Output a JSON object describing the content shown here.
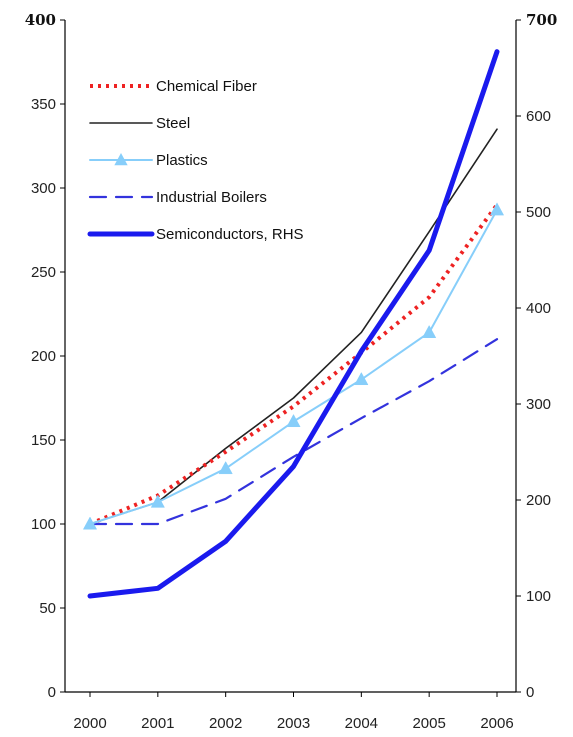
{
  "chart_data": {
    "type": "line",
    "title": "",
    "xlabel": "",
    "ylabel": "",
    "categories": [
      "2000",
      "2001",
      "2002",
      "2003",
      "2004",
      "2005",
      "2006"
    ],
    "ylim_left": [
      0,
      400
    ],
    "ylim_right": [
      0,
      700
    ],
    "y_ticks_left": [
      "0",
      "50",
      "100",
      "150",
      "200",
      "250",
      "300",
      "350",
      "400"
    ],
    "y_ticks_right": [
      "0",
      "100",
      "200",
      "300",
      "400",
      "500",
      "600",
      "700"
    ],
    "grid": false,
    "legend_position": "top-left",
    "series": [
      {
        "name": "Chemical Fiber",
        "axis": "left",
        "color": "#ee2222",
        "style": "dotted",
        "values": [
          100,
          117,
          143,
          170,
          202,
          235,
          290
        ]
      },
      {
        "name": "Steel",
        "axis": "left",
        "color": "#222222",
        "style": "solid-thin",
        "values": [
          100,
          113,
          145,
          175,
          214,
          274,
          335
        ]
      },
      {
        "name": "Plastics",
        "axis": "left",
        "color": "#87cefa",
        "style": "solid-triangle",
        "values": [
          100,
          113,
          133,
          161,
          186,
          214,
          287
        ]
      },
      {
        "name": "Industrial Boilers",
        "axis": "left",
        "color": "#3333dd",
        "style": "dashed",
        "values": [
          100,
          100,
          115,
          140,
          163,
          185,
          210
        ]
      },
      {
        "name": "Semiconductors, RHS",
        "axis": "right",
        "color": "#1a1aee",
        "style": "solid-thick",
        "values": [
          100,
          108,
          157,
          235,
          355,
          460,
          667
        ]
      }
    ]
  }
}
